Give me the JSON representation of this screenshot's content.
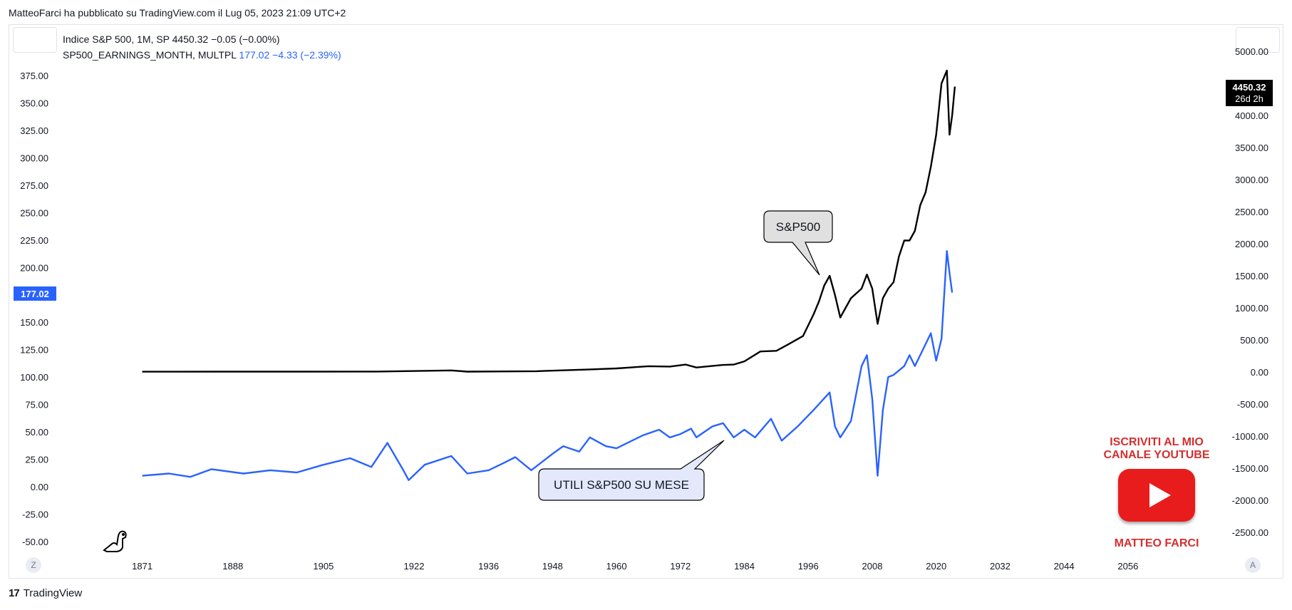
{
  "header": {
    "published": "MatteoFarci ha pubblicato su TradingView.com il Lug 05, 2023 21:09 UTC+2"
  },
  "legend": {
    "line1": "Indice S&P 500, 1M, SP  4450.32  −0.05 (−0.00%)",
    "line2_name": "SP500_EARNINGS_MONTH, MULTPL",
    "line2_values": "177.02  −4.33 (−2.39%)"
  },
  "footer": {
    "brand": "TradingView",
    "logo_text": "17"
  },
  "buttons": {
    "zoom": "Z",
    "auto": "A"
  },
  "promo": {
    "line1": "ISCRIVITI AL MIO",
    "line2": "CANALE YOUTUBE",
    "name": "MATTEO FARCI"
  },
  "colors": {
    "sp500": "#000000",
    "earnings": "#2962ff",
    "left_badge": "#2962ff",
    "right_badge": "#000000"
  },
  "chart_data": {
    "type": "line",
    "x_tick_labels": [
      "1871",
      "1888",
      "1905",
      "1922",
      "1936",
      "1948",
      "1960",
      "1972",
      "1984",
      "1996",
      "2008",
      "2020",
      "2032",
      "2044",
      "2056"
    ],
    "x_tick_values": [
      1871,
      1888,
      1905,
      1922,
      1936,
      1948,
      1960,
      1972,
      1984,
      1996,
      2008,
      2020,
      2032,
      2044,
      2056
    ],
    "xlim": [
      1855,
      2073
    ],
    "left_axis": {
      "ticks": [
        375,
        350,
        325,
        300,
        275,
        250,
        225,
        200,
        150,
        125,
        100,
        75,
        50,
        25,
        0,
        -25,
        -50
      ],
      "tick_labels": [
        "375.00",
        "350.00",
        "325.00",
        "300.00",
        "275.00",
        "250.00",
        "225.00",
        "200.00",
        "150.00",
        "125.00",
        "100.00",
        "75.00",
        "50.00",
        "25.00",
        "0.00",
        "-25.00",
        "-50.00"
      ],
      "ylim": [
        -50,
        400
      ],
      "last_value_label": "177.02",
      "last_value": 177.02
    },
    "right_axis": {
      "ticks": [
        5000,
        4000,
        3500,
        3000,
        2500,
        2000,
        1500,
        1000,
        500,
        0,
        -500,
        -1000,
        -1500,
        -2000,
        -2500
      ],
      "tick_labels": [
        "5000.00",
        "4000.00",
        "3500.00",
        "3000.00",
        "2500.00",
        "2000.00",
        "1500.00",
        "1000.00",
        "500.00",
        "0.00",
        "-500.00",
        "-1000.00",
        "-1500.00",
        "-2000.00",
        "-2500.00"
      ],
      "ylim": [
        -2500,
        5000
      ],
      "last_value_label": "4450.32",
      "countdown_label": "26d 2h",
      "last_value": 4450.32
    },
    "series": [
      {
        "name": "Indice S&P 500, 1M, SP",
        "axis": "right",
        "color": "#000000",
        "points": [
          [
            1871,
            4
          ],
          [
            1885,
            5
          ],
          [
            1900,
            6
          ],
          [
            1915,
            7
          ],
          [
            1929,
            25
          ],
          [
            1932,
            6
          ],
          [
            1945,
            12
          ],
          [
            1955,
            40
          ],
          [
            1960,
            55
          ],
          [
            1966,
            90
          ],
          [
            1970,
            85
          ],
          [
            1973,
            115
          ],
          [
            1975,
            70
          ],
          [
            1980,
            110
          ],
          [
            1982,
            115
          ],
          [
            1984,
            165
          ],
          [
            1987,
            320
          ],
          [
            1990,
            330
          ],
          [
            1992,
            420
          ],
          [
            1995,
            560
          ],
          [
            1997,
            900
          ],
          [
            1998,
            1100
          ],
          [
            1999,
            1350
          ],
          [
            2000,
            1500
          ],
          [
            2001,
            1200
          ],
          [
            2002,
            850
          ],
          [
            2003,
            1000
          ],
          [
            2004,
            1150
          ],
          [
            2006,
            1300
          ],
          [
            2007,
            1520
          ],
          [
            2008,
            1300
          ],
          [
            2009,
            750
          ],
          [
            2010,
            1150
          ],
          [
            2011,
            1300
          ],
          [
            2012,
            1400
          ],
          [
            2013,
            1800
          ],
          [
            2014,
            2050
          ],
          [
            2015,
            2050
          ],
          [
            2016,
            2200
          ],
          [
            2017,
            2600
          ],
          [
            2018,
            2800
          ],
          [
            2019,
            3200
          ],
          [
            2020,
            3700
          ],
          [
            2021,
            4500
          ],
          [
            2022,
            4700
          ],
          [
            2022.5,
            3700
          ],
          [
            2023,
            4000
          ],
          [
            2023.5,
            4450
          ]
        ]
      },
      {
        "name": "SP500_EARNINGS_MONTH, MULTPL",
        "axis": "left",
        "color": "#2962ff",
        "points": [
          [
            1871,
            10
          ],
          [
            1876,
            12
          ],
          [
            1880,
            9
          ],
          [
            1884,
            16
          ],
          [
            1890,
            12
          ],
          [
            1895,
            15
          ],
          [
            1900,
            13
          ],
          [
            1905,
            20
          ],
          [
            1910,
            26
          ],
          [
            1914,
            18
          ],
          [
            1917,
            40
          ],
          [
            1920,
            15
          ],
          [
            1921,
            6
          ],
          [
            1924,
            20
          ],
          [
            1929,
            28
          ],
          [
            1932,
            12
          ],
          [
            1936,
            15
          ],
          [
            1939,
            22
          ],
          [
            1941,
            27
          ],
          [
            1944,
            15
          ],
          [
            1948,
            30
          ],
          [
            1950,
            37
          ],
          [
            1953,
            32
          ],
          [
            1955,
            45
          ],
          [
            1958,
            37
          ],
          [
            1960,
            35
          ],
          [
            1965,
            47
          ],
          [
            1968,
            52
          ],
          [
            1970,
            45
          ],
          [
            1972,
            48
          ],
          [
            1974,
            53
          ],
          [
            1975,
            45
          ],
          [
            1978,
            55
          ],
          [
            1980,
            58
          ],
          [
            1982,
            45
          ],
          [
            1984,
            52
          ],
          [
            1986,
            45
          ],
          [
            1989,
            62
          ],
          [
            1991,
            42
          ],
          [
            1994,
            55
          ],
          [
            1997,
            70
          ],
          [
            2000,
            86
          ],
          [
            2001,
            55
          ],
          [
            2002,
            45
          ],
          [
            2004,
            60
          ],
          [
            2006,
            110
          ],
          [
            2007,
            120
          ],
          [
            2008,
            80
          ],
          [
            2009,
            10
          ],
          [
            2010,
            70
          ],
          [
            2011,
            100
          ],
          [
            2012,
            102
          ],
          [
            2014,
            110
          ],
          [
            2015,
            120
          ],
          [
            2016,
            110
          ],
          [
            2018,
            130
          ],
          [
            2019,
            140
          ],
          [
            2020,
            115
          ],
          [
            2021,
            135
          ],
          [
            2022,
            215
          ],
          [
            2022.5,
            195
          ],
          [
            2023,
            177.02
          ]
        ]
      }
    ],
    "annotations": [
      {
        "text": "S&P500",
        "points_to": [
          2000,
          1500
        ],
        "axis": "right"
      },
      {
        "text": "UTILI S&P500 SU MESE",
        "points_to": [
          1984,
          52
        ],
        "axis": "left"
      }
    ]
  }
}
